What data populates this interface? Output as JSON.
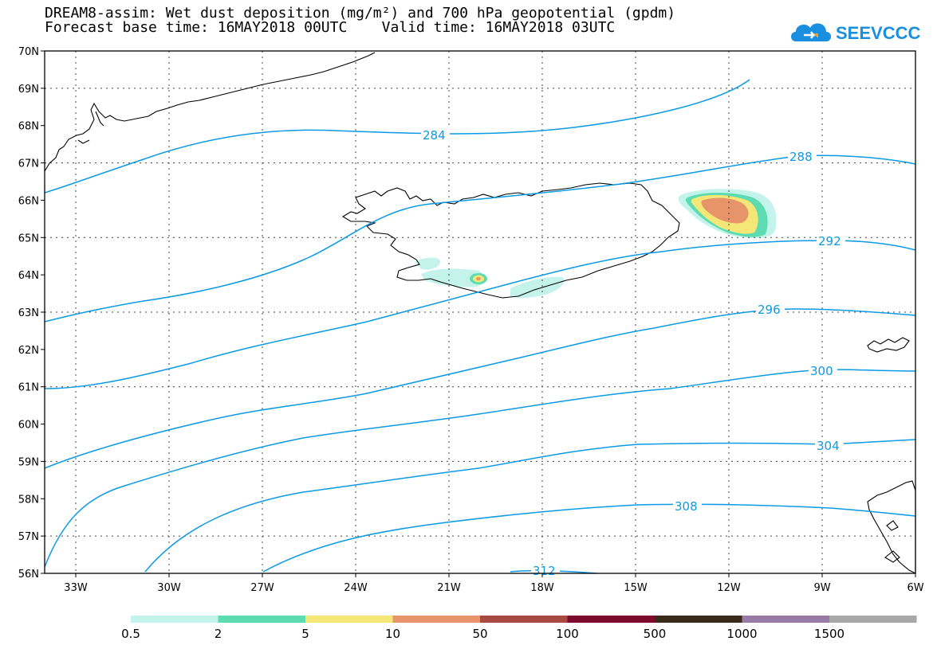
{
  "header": {
    "title_line1": "DREAM8-assim: Wet dust deposition (mg/m²) and 700 hPa geopotential (gpdm)",
    "title_line2": "Forecast base time: 16MAY2018 00UTC    Valid time: 16MAY2018 03UTC"
  },
  "logo": {
    "text": "SEEVCCC",
    "color": "#1a8fe0",
    "accent": "#f5a623",
    "icon": "cloud-icon"
  },
  "map": {
    "lon_range": [
      -34,
      -6
    ],
    "lat_range": [
      56,
      70
    ],
    "lat_labels": [
      "70N",
      "69N",
      "68N",
      "67N",
      "66N",
      "65N",
      "64N",
      "63N",
      "62N",
      "61N",
      "60N",
      "59N",
      "58N",
      "57N",
      "56N"
    ],
    "lon_labels": [
      "33W",
      "30W",
      "27W",
      "24W",
      "21W",
      "18W",
      "15W",
      "12W",
      "9W",
      "6W"
    ],
    "contour_color": "#0a9ae6",
    "contour_labels": [
      "284",
      "288",
      "292",
      "296",
      "300",
      "304",
      "308",
      "312"
    ]
  },
  "legend": {
    "colors": [
      "#c4f3ec",
      "#5cdcb0",
      "#f5e678",
      "#e8946a",
      "#a94a42",
      "#7e0a2e",
      "#3a2a1a",
      "#9a7aa6",
      "#a8a8a8"
    ],
    "labels": [
      "0.5",
      "2",
      "5",
      "10",
      "50",
      "100",
      "500",
      "1000",
      "1500"
    ]
  }
}
